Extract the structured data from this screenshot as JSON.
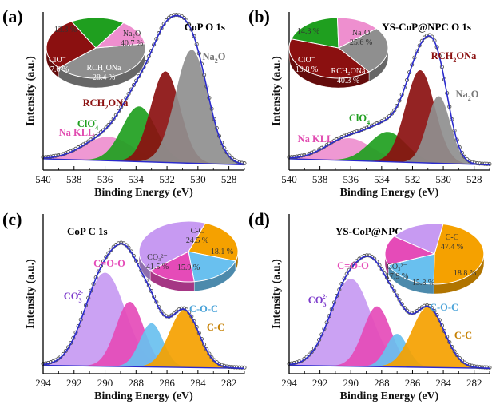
{
  "axis_common": {
    "xlabel": "Binding Energy (eV)",
    "ylabel": "Intensity (a.u.)"
  },
  "chart_data": [
    {
      "type": "area",
      "panel_label": "(a)",
      "title": "CoP O 1s",
      "xlabel": "Binding Energy (eV)",
      "ylabel": "Intensity (a.u.)",
      "x_reversed": true,
      "xlim": [
        540,
        527
      ],
      "xticks": [
        540,
        538,
        536,
        534,
        532,
        530,
        528
      ],
      "components": [
        {
          "name": "Na KLL",
          "label": "Na KLL",
          "center": 535.8,
          "height": 0.16,
          "width": 1.6,
          "color": "#ee8fcf"
        },
        {
          "name": "ClO4-",
          "label": "ClO",
          "label_sub": "4",
          "label_sup": "-",
          "center": 533.8,
          "height": 0.37,
          "width": 1.1,
          "color": "#1f9f1f"
        },
        {
          "name": "RCH2ONa",
          "label": "RCH",
          "label_sub": "2",
          "label_rest": "ONa",
          "center": 532.1,
          "height": 0.61,
          "width": 0.95,
          "color": "#8b1010"
        },
        {
          "name": "Na2O",
          "label": "Na",
          "label_sub": "2",
          "label_rest": "O",
          "center": 530.4,
          "height": 0.76,
          "width": 1.05,
          "color": "#8f8f8f"
        }
      ],
      "pie": [
        {
          "name": "Na2O",
          "label": "Na₂O",
          "value": 40.7,
          "color": "#8f8f8f"
        },
        {
          "name": "RCH2ONa",
          "label": "RCH₂ONa",
          "value": 28.4,
          "color": "#8b1010"
        },
        {
          "name": "ClO-",
          "label": "ClO⁻",
          "value": 17.6,
          "color": "#1f9f1f"
        },
        {
          "name": "Na KLL",
          "label": "",
          "value": 13.3,
          "color": "#ee8fcf"
        }
      ]
    },
    {
      "type": "area",
      "panel_label": "(b)",
      "title": "YS-CoP@NPC O 1s",
      "xlabel": "Binding Energy (eV)",
      "ylabel": "Intensity (a.u.)",
      "x_reversed": true,
      "xlim": [
        540,
        527
      ],
      "xticks": [
        540,
        538,
        536,
        534,
        532,
        530,
        528
      ],
      "components": [
        {
          "name": "Na KLL",
          "label": "Na KLL",
          "center": 536.1,
          "height": 0.15,
          "width": 1.5,
          "color": "#ee8fcf"
        },
        {
          "name": "ClO4-",
          "label": "ClO",
          "label_sub": "4",
          "label_sup": "-",
          "center": 533.6,
          "height": 0.2,
          "width": 1.2,
          "color": "#1f9f1f"
        },
        {
          "name": "RCH2ONa",
          "label": "RCH",
          "label_sub": "2",
          "label_rest": "ONa",
          "center": 531.5,
          "height": 0.62,
          "width": 0.95,
          "color": "#8b1010"
        },
        {
          "name": "Na2O",
          "label": "Na",
          "label_sub": "2",
          "label_rest": "O",
          "center": 530.3,
          "height": 0.45,
          "width": 0.75,
          "color": "#8f8f8f"
        }
      ],
      "pie": [
        {
          "name": "Na2O",
          "label": "Na₂O",
          "value": 25.6,
          "color": "#8f8f8f"
        },
        {
          "name": "RCH2ONa",
          "label": "RCH₂ONa",
          "value": 40.3,
          "color": "#8b1010"
        },
        {
          "name": "ClO-",
          "label": "ClO⁻",
          "value": 19.8,
          "color": "#1f9f1f"
        },
        {
          "name": "Na KLL",
          "label": "",
          "value": 14.3,
          "color": "#ee8fcf"
        }
      ]
    },
    {
      "type": "area",
      "panel_label": "(c)",
      "title": "CoP C 1s",
      "xlabel": "Binding Energy (eV)",
      "ylabel": "Intensity (a.u.)",
      "x_reversed": true,
      "xlim": [
        294,
        281
      ],
      "xticks": [
        294,
        292,
        290,
        288,
        286,
        284,
        282
      ],
      "components": [
        {
          "name": "CO3 2-",
          "label": "CO",
          "label_sub": "3",
          "label_sup": "2-",
          "center": 290.0,
          "height": 0.62,
          "width": 1.3,
          "color": "#c79af2"
        },
        {
          "name": "C=O-O",
          "label": "C=O-O",
          "center": 288.4,
          "height": 0.43,
          "width": 0.9,
          "color": "#e54bb8"
        },
        {
          "name": "C-O-C",
          "label": "C-O-C",
          "center": 287.0,
          "height": 0.29,
          "width": 0.75,
          "color": "#69c0ef"
        },
        {
          "name": "C-C",
          "label": "C-C",
          "center": 284.9,
          "height": 0.38,
          "width": 0.95,
          "color": "#f5a100"
        }
      ],
      "pie": [
        {
          "name": "C-C",
          "label": "C-C",
          "value": 24.5,
          "color": "#f5a100"
        },
        {
          "name": "C-O-C",
          "label": "",
          "value": 18.1,
          "color": "#69c0ef"
        },
        {
          "name": "C=O-O",
          "label": "",
          "value": 15.9,
          "color": "#e54bb8"
        },
        {
          "name": "CO3 2-",
          "label": "CO₃²⁻",
          "value": 41.5,
          "color": "#c79af2"
        }
      ]
    },
    {
      "type": "area",
      "panel_label": "(d)",
      "title": "YS-CoP@NPC C 1s",
      "xlabel": "Binding Energy (eV)",
      "ylabel": "Intensity (a.u.)",
      "x_reversed": true,
      "xlim": [
        294,
        281
      ],
      "xticks": [
        294,
        292,
        290,
        288,
        286,
        284,
        282
      ],
      "components": [
        {
          "name": "CO3 2-",
          "label": "CO",
          "label_sub": "3",
          "label_sup": "2-",
          "center": 290.0,
          "height": 0.58,
          "width": 1.3,
          "color": "#c79af2"
        },
        {
          "name": "C=O-O",
          "label": "C=O-O",
          "center": 288.3,
          "height": 0.4,
          "width": 0.9,
          "color": "#e54bb8"
        },
        {
          "name": "C-O-C",
          "label": "C-O-C",
          "center": 287.0,
          "height": 0.22,
          "width": 0.7,
          "color": "#69c0ef"
        },
        {
          "name": "C-C",
          "label": "C-C",
          "center": 285.0,
          "height": 0.4,
          "width": 1.05,
          "color": "#f5a100"
        }
      ],
      "pie": [
        {
          "name": "C-C",
          "label": "C-C",
          "value": 47.4,
          "color": "#f5a100"
        },
        {
          "name": "C-O-C",
          "label": "",
          "value": 18.8,
          "color": "#69c0ef"
        },
        {
          "name": "C=O-O",
          "label": "",
          "value": 15.8,
          "color": "#e54bb8"
        },
        {
          "name": "CO3 2-",
          "label": "CO₃²⁻",
          "value": 17.9,
          "color": "#c79af2"
        }
      ]
    }
  ]
}
